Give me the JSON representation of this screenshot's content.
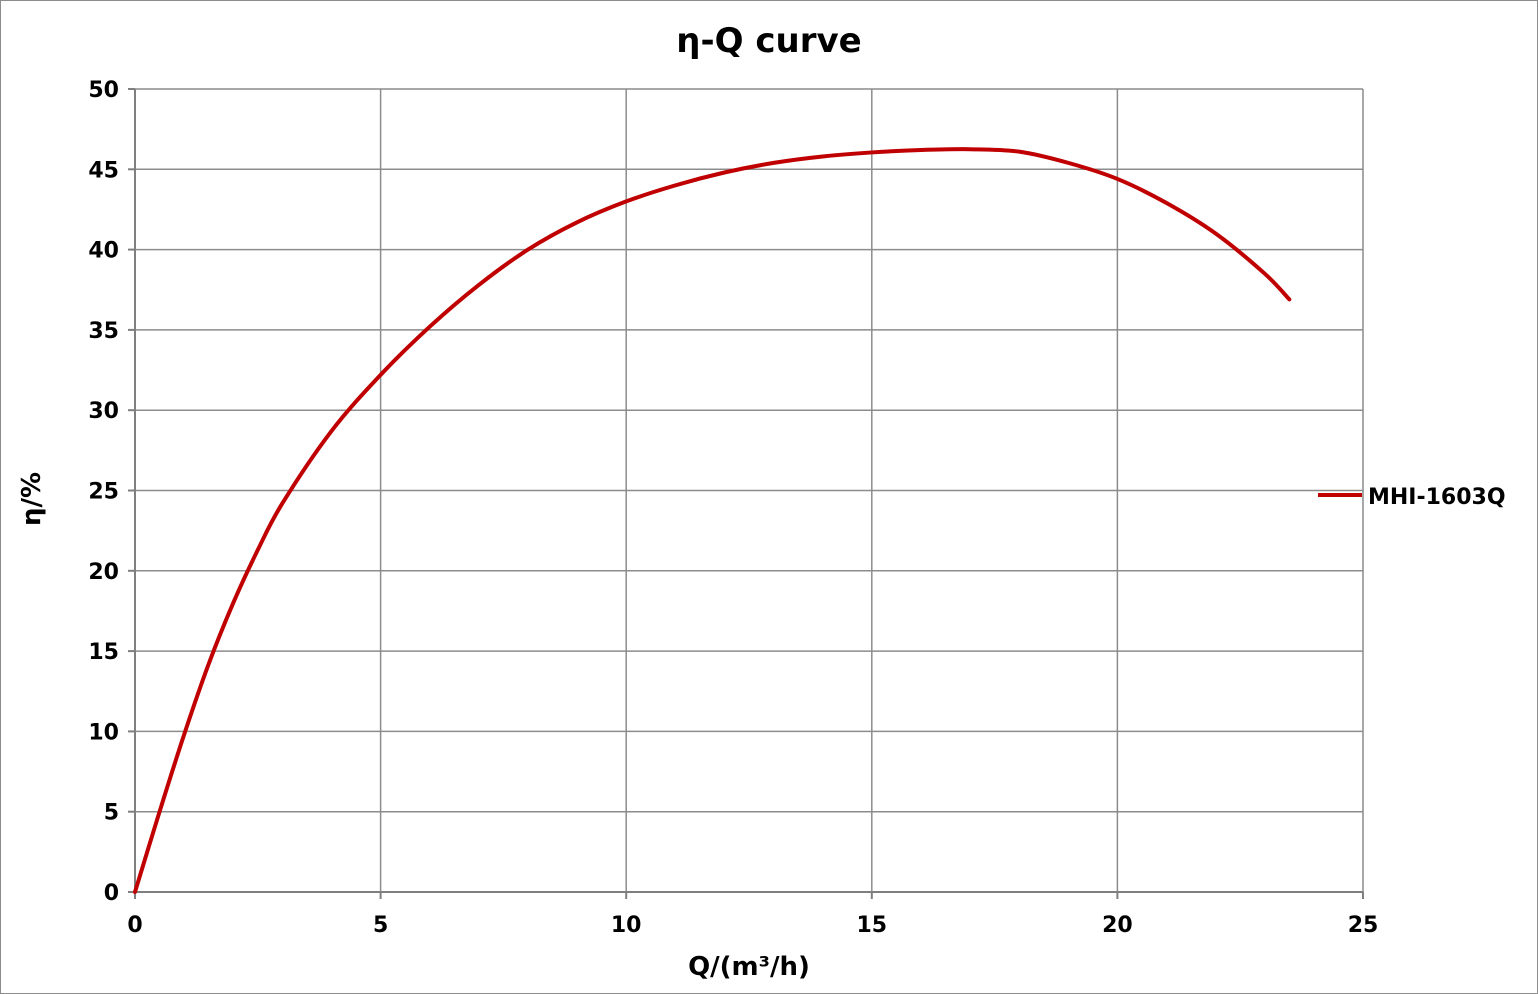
{
  "chart_data": {
    "type": "line",
    "title": "η-Q  curve",
    "xlabel": "Q/(m³/h)",
    "ylabel": "η/%",
    "xlim": [
      0,
      25
    ],
    "ylim": [
      0,
      50
    ],
    "xticks": [
      0,
      5,
      10,
      15,
      20,
      25
    ],
    "yticks": [
      0,
      5,
      10,
      15,
      20,
      25,
      30,
      35,
      40,
      45,
      50
    ],
    "grid": true,
    "legend_position": "right",
    "series": [
      {
        "name": "MHI-1603Q",
        "color": "#c00000",
        "x": [
          0,
          0.5,
          1.0,
          1.5,
          2.0,
          2.5,
          3.0,
          4.0,
          5.0,
          6.0,
          7.0,
          8.0,
          9.0,
          10.0,
          11.0,
          12.0,
          13.0,
          14.0,
          15.0,
          16.0,
          17.0,
          18.0,
          19.0,
          20.0,
          21.0,
          22.0,
          23.0,
          23.5
        ],
        "y": [
          0,
          5.0,
          9.8,
          14.2,
          18.0,
          21.3,
          24.2,
          28.7,
          32.2,
          35.2,
          37.8,
          40.0,
          41.7,
          43.0,
          44.0,
          44.8,
          45.4,
          45.8,
          46.05,
          46.2,
          46.25,
          46.1,
          45.4,
          44.4,
          42.9,
          41.0,
          38.5,
          36.9
        ]
      }
    ]
  }
}
